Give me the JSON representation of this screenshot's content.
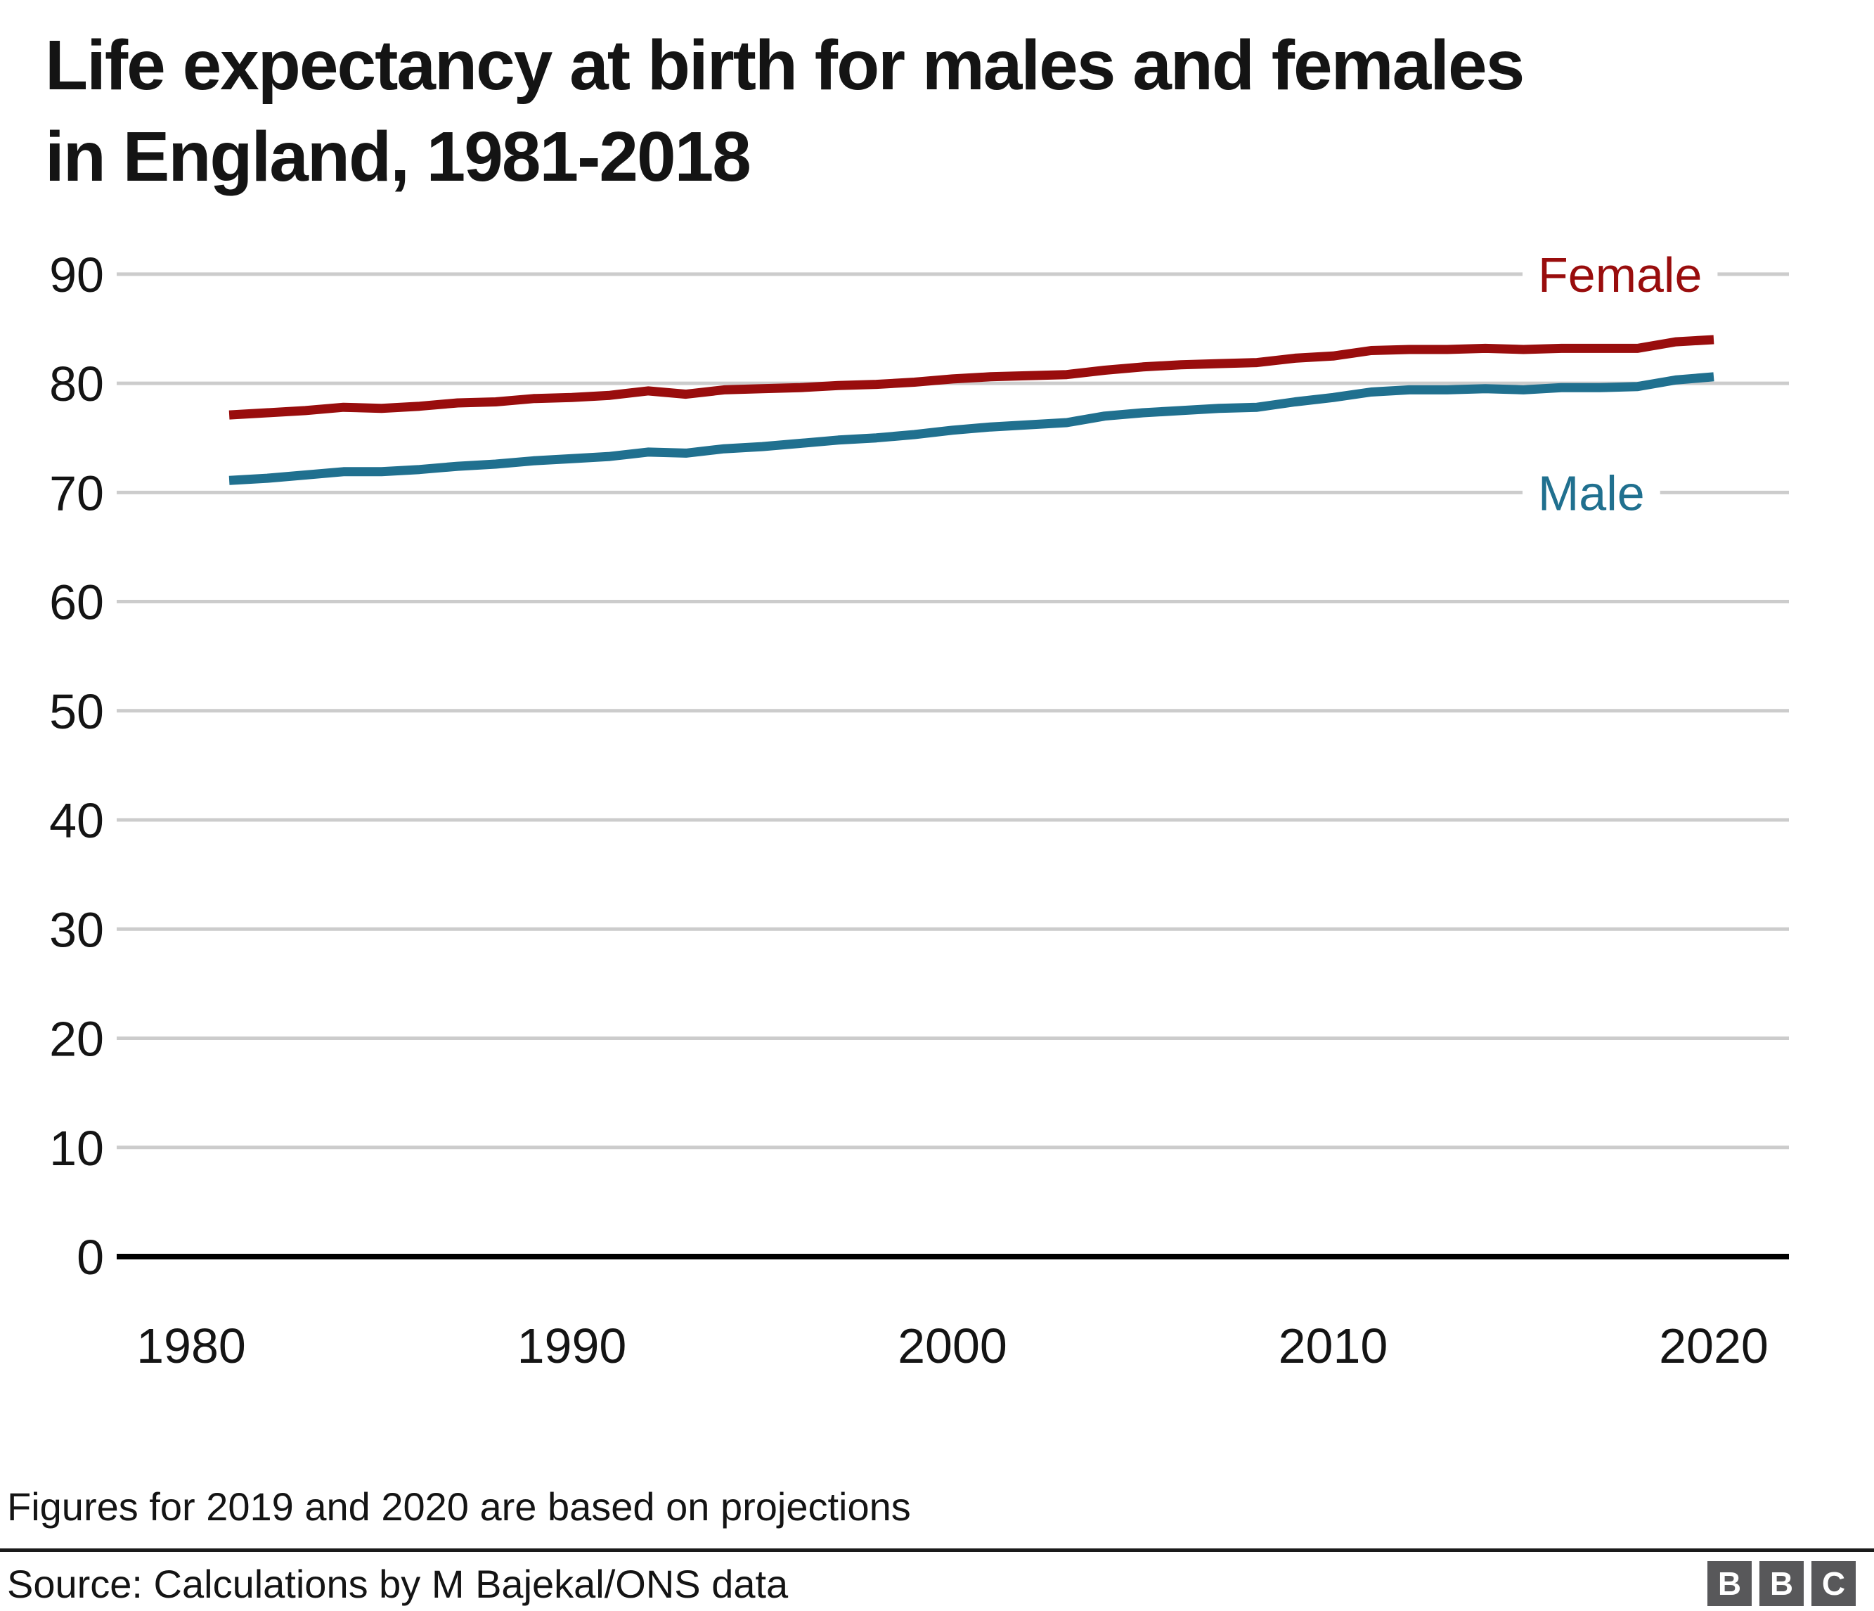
{
  "title": "Life expectancy at birth for males and females in England, 1981-2018",
  "title_lines": [
    "Life expectancy at birth for males and females",
    "in England, 1981-2018"
  ],
  "footnote": "Figures for 2019 and 2020 are based on projections",
  "source": "Source: Calculations by M Bajekal/ONS data",
  "logo": {
    "letters": [
      "B",
      "B",
      "C"
    ],
    "block_color": "#58585a",
    "letter_color": "#ffffff"
  },
  "colors": {
    "title_text": "#141414",
    "axis_line": "#000000",
    "gridline": "#cccccc",
    "tick_text": "#141414",
    "female": "#990d0d",
    "male": "#20708f"
  },
  "chart_data": {
    "type": "line",
    "x": [
      1981,
      1982,
      1983,
      1984,
      1985,
      1986,
      1987,
      1988,
      1989,
      1990,
      1991,
      1992,
      1993,
      1994,
      1995,
      1996,
      1997,
      1998,
      1999,
      2000,
      2001,
      2002,
      2003,
      2004,
      2005,
      2006,
      2007,
      2008,
      2009,
      2010,
      2011,
      2012,
      2013,
      2014,
      2015,
      2016,
      2017,
      2018,
      2019,
      2020
    ],
    "series": [
      {
        "name": "Female",
        "color": "#990d0d",
        "label_line_value": 90,
        "values": [
          77.1,
          77.3,
          77.5,
          77.8,
          77.7,
          77.9,
          78.2,
          78.3,
          78.6,
          78.7,
          78.9,
          79.3,
          79.0,
          79.4,
          79.5,
          79.6,
          79.8,
          79.9,
          80.1,
          80.4,
          80.6,
          80.7,
          80.8,
          81.2,
          81.5,
          81.7,
          81.8,
          81.9,
          82.3,
          82.5,
          83.0,
          83.1,
          83.1,
          83.2,
          83.1,
          83.2,
          83.2,
          83.2,
          83.8,
          84.0
        ]
      },
      {
        "name": "Male",
        "color": "#20708f",
        "label_line_value": 70,
        "values": [
          71.1,
          71.3,
          71.6,
          71.9,
          71.9,
          72.1,
          72.4,
          72.6,
          72.9,
          73.1,
          73.3,
          73.7,
          73.6,
          74.0,
          74.2,
          74.5,
          74.8,
          75.0,
          75.3,
          75.7,
          76.0,
          76.2,
          76.4,
          77.0,
          77.3,
          77.5,
          77.7,
          77.8,
          78.3,
          78.7,
          79.2,
          79.4,
          79.4,
          79.5,
          79.4,
          79.6,
          79.6,
          79.7,
          80.3,
          80.6
        ]
      }
    ],
    "title": "Life expectancy at birth for males and females in England, 1981-2018",
    "xlabel": "",
    "ylabel": "",
    "x_ticks": [
      1980,
      1990,
      2000,
      2010,
      2020
    ],
    "y_ticks": [
      0,
      10,
      20,
      30,
      40,
      50,
      60,
      70,
      80,
      90
    ],
    "xlim": [
      1978,
      2022
    ],
    "ylim": [
      0,
      90
    ],
    "grid": true,
    "legend_position": "inline-right"
  }
}
